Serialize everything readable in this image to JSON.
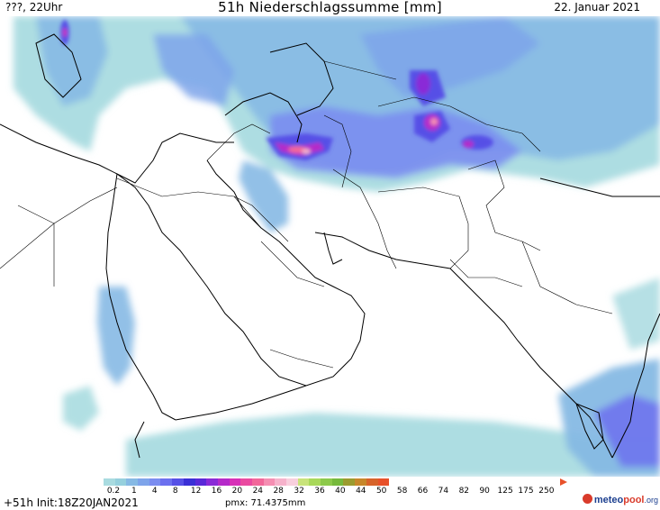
{
  "header": {
    "left_label": "???, 22Uhr",
    "title": "51h Niederschlagssumme [mm]",
    "date": "22. Januar 2021"
  },
  "footer": {
    "run_info": "+51h Init:18Z20JAN2021",
    "pmx": "pmx: 71.4375mm",
    "logo_main": "meteo",
    "logo_accent": "pool",
    "logo_suffix": ".org"
  },
  "legend": {
    "ticks": [
      "0.2",
      "1",
      "4",
      "8",
      "12",
      "16",
      "20",
      "24",
      "28",
      "32",
      "36",
      "40",
      "44",
      "50",
      "58",
      "66",
      "74",
      "82",
      "90",
      "125",
      "175",
      "250"
    ],
    "colors": [
      "#a9dbe0",
      "#96d0dd",
      "#86b9e4",
      "#7ea4ea",
      "#7b8df0",
      "#6c70ef",
      "#5650e6",
      "#3a2fd6",
      "#5a28d8",
      "#8a2ad7",
      "#b52ac9",
      "#d730b7",
      "#ea4aa0",
      "#f2679a",
      "#f58eb2",
      "#f6b2cb",
      "#f8cfdd",
      "#c8e37a",
      "#a8d85a",
      "#8cc94a",
      "#76b93c",
      "#9b9b2e",
      "#c7872a",
      "#d7632a",
      "#e8512a"
    ]
  }
}
